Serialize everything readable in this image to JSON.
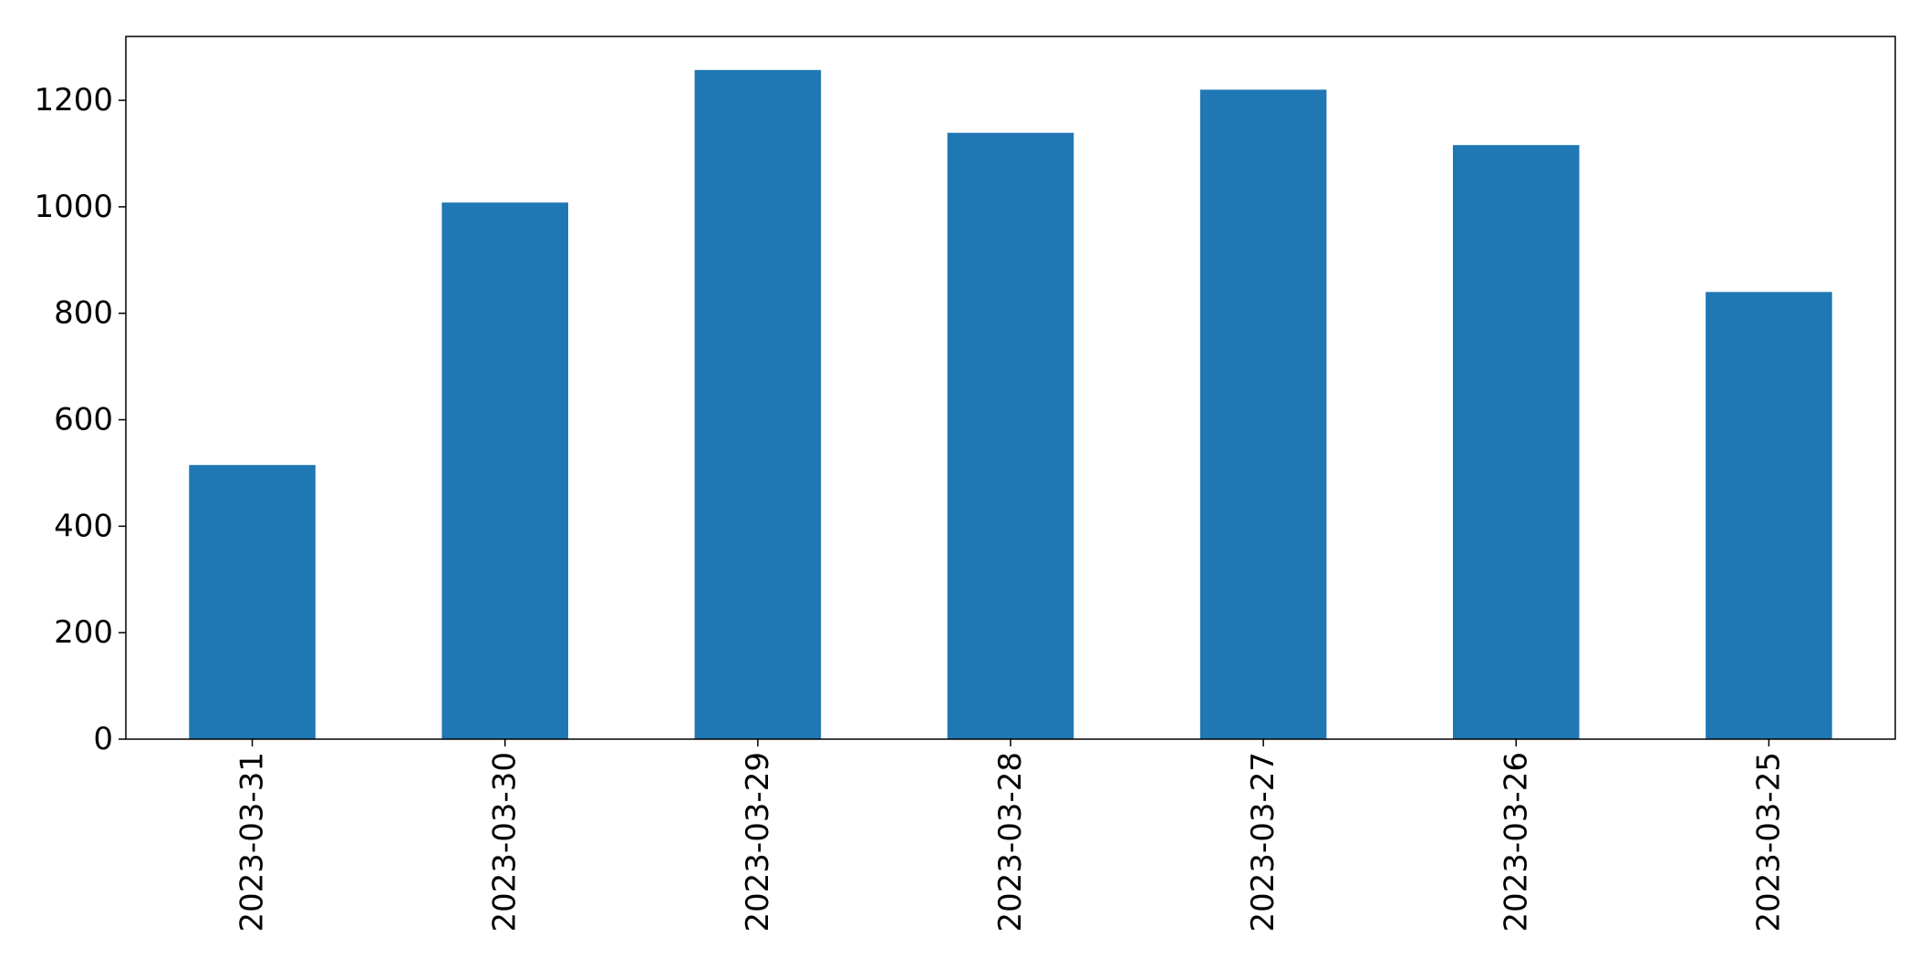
{
  "chart_data": {
    "type": "bar",
    "categories": [
      "2023-03-31",
      "2023-03-30",
      "2023-03-29",
      "2023-03-28",
      "2023-03-27",
      "2023-03-26",
      "2023-03-25"
    ],
    "values": [
      515,
      1008,
      1257,
      1139,
      1220,
      1116,
      840
    ],
    "title": "",
    "xlabel": "",
    "ylabel": "",
    "ylim": [
      0,
      1320
    ],
    "yticks": [
      0,
      200,
      400,
      600,
      800,
      1000,
      1200
    ],
    "bar_color": "#1f77b4",
    "grid": false,
    "legend": "none",
    "x_tick_rotation": "vertical"
  }
}
